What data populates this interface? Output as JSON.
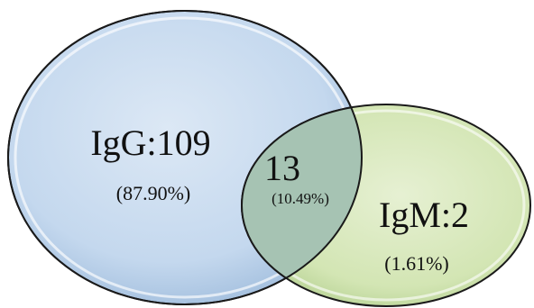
{
  "diagram": {
    "type": "venn",
    "sets": [
      {
        "name": "IgG",
        "label": "IgG:109",
        "count": 109,
        "percent_label": "(87.90%)",
        "percent": 87.9,
        "fill_color": "#c9dcf0",
        "stroke_color": "#1a1a1a"
      },
      {
        "name": "IgM",
        "label": "IgM:2",
        "count": 2,
        "percent_label": "(1.61%)",
        "percent": 1.61,
        "fill_color": "#d4e7b4",
        "stroke_color": "#1a1a1a"
      }
    ],
    "intersection": {
      "label": "13",
      "count": 13,
      "percent_label": "(10.49%)",
      "percent": 10.49,
      "fill_color": "#a9c4b6"
    }
  }
}
